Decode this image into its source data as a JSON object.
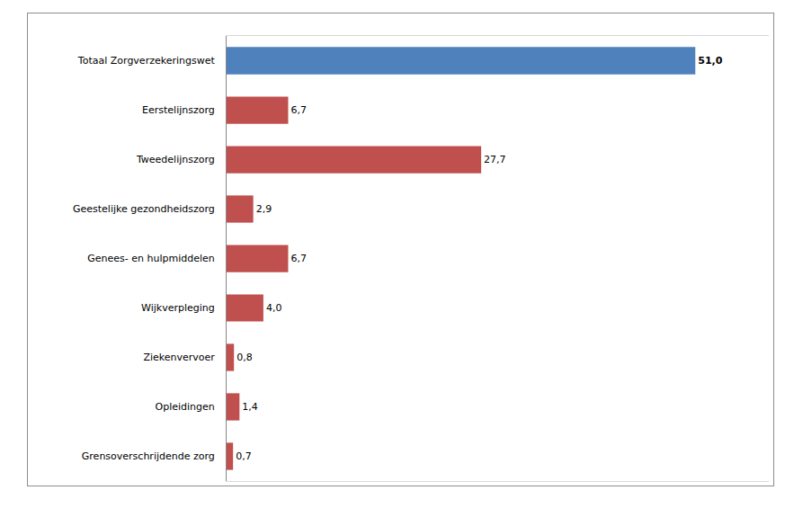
{
  "chart_data": {
    "type": "bar",
    "orientation": "horizontal",
    "categories": [
      "Totaal Zorgverzekeringswet",
      "Eerstelijnszorg",
      "Tweedelijnszorg",
      "Geestelijke gezondheidszorg",
      "Genees- en hulpmiddelen",
      "Wijkverpleging",
      "Ziekenvervoer",
      "Opleidingen",
      "Grensoverschrijdende zorg"
    ],
    "values": [
      51.0,
      6.7,
      27.7,
      2.9,
      6.7,
      4.0,
      0.8,
      1.4,
      0.7
    ],
    "value_labels": [
      "51,0",
      "6,7",
      "27,7",
      "2,9",
      "6,7",
      "4,0",
      "0,8",
      "1,4",
      "0,7"
    ],
    "colors": [
      "#4f81bd",
      "#c0504d",
      "#c0504d",
      "#c0504d",
      "#c0504d",
      "#c0504d",
      "#c0504d",
      "#c0504d",
      "#c0504d"
    ],
    "xlim": [
      0,
      59
    ],
    "xticks": [],
    "grid": false,
    "data_labels": true,
    "tick_labels": "y"
  }
}
